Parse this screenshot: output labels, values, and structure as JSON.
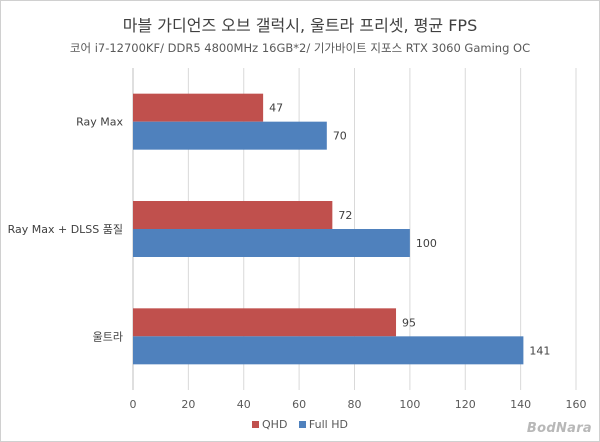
{
  "colors": {
    "qhd": "#C0504D",
    "fullhd": "#4F81BD",
    "grid": "#d9d9d9",
    "axis": "#bfbfbf"
  },
  "chart_data": {
    "type": "bar",
    "orientation": "horizontal",
    "title": "마블 가디언즈 오브 갤럭시, 울트라 프리셋, 평균 FPS",
    "subtitle": "코어 i7-12700KF/ DDR5 4800MHz 16GB*2/ 기가바이트 지포스 RTX 3060 Gaming OC",
    "categories": [
      "Ray Max",
      "Ray Max + DLSS 품질",
      "울트라"
    ],
    "series": [
      {
        "name": "QHD",
        "values": [
          47,
          72,
          95
        ]
      },
      {
        "name": "Full HD",
        "values": [
          70,
          100,
          141
        ]
      }
    ],
    "xlim": [
      0,
      160
    ],
    "xticks": [
      0,
      20,
      40,
      60,
      80,
      100,
      120,
      140,
      160
    ],
    "grid": true,
    "legend": "bottom",
    "watermark": "BodNara"
  }
}
